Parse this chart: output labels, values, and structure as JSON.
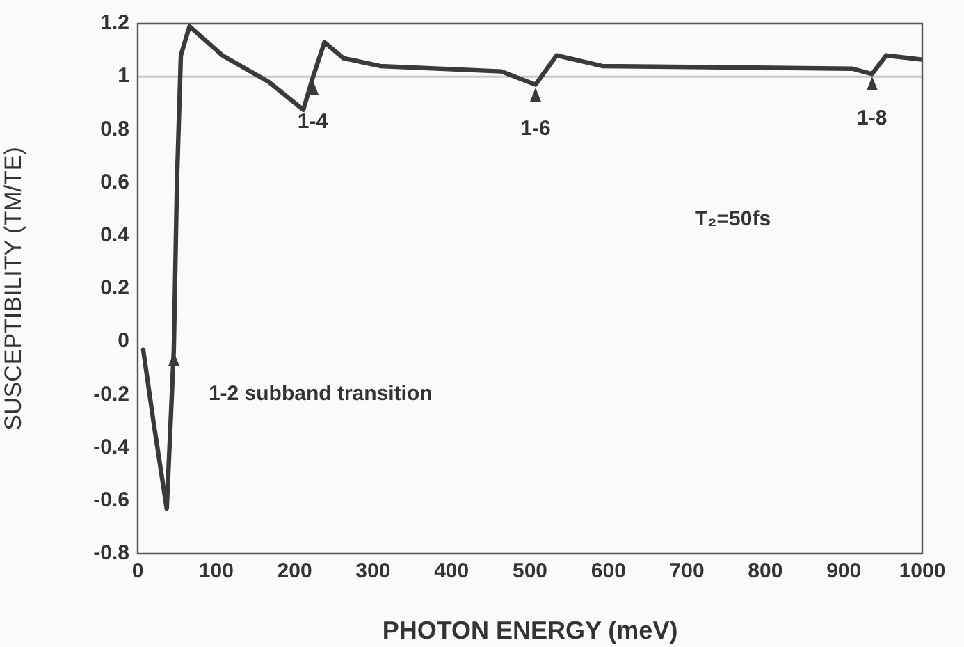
{
  "chart_data": {
    "type": "line",
    "xlabel": "PHOTON ENERGY (meV)",
    "ylabel": "SUSCEPTIBILITY (TM/TE)",
    "xlim": [
      0,
      1000
    ],
    "xticks": [
      0,
      100,
      200,
      300,
      400,
      500,
      600,
      700,
      800,
      900,
      1000
    ],
    "ylim": [
      -0.8,
      1.2
    ],
    "yticks": [
      -0.8,
      -0.6,
      -0.4,
      -0.2,
      0,
      0.2,
      0.4,
      0.6,
      0.8,
      1,
      1.2
    ],
    "grid": false,
    "legend": false,
    "marker": "none",
    "line_style": "solid",
    "series": [
      {
        "color": "#3a3a3a",
        "x": [
          7,
          20,
          37,
          42,
          46,
          50,
          55,
          66,
          108,
          167,
          211,
          223,
          238,
          262,
          309,
          463,
          507,
          534,
          592,
          911,
          936,
          954,
          998
        ],
        "values": [
          -0.03,
          -0.3,
          -0.63,
          -0.3,
          -0.03,
          0.6,
          1.08,
          1.19,
          1.08,
          0.98,
          0.875,
          0.995,
          1.13,
          1.07,
          1.04,
          1.02,
          0.97,
          1.08,
          1.04,
          1.03,
          1.01,
          1.08,
          1.065
        ]
      }
    ],
    "ref_lines": [
      {
        "axis": "y",
        "value": 1,
        "color": "#c8c8c8"
      }
    ],
    "annotations": [
      {
        "text": "1-2 subband transition",
        "x": 46,
        "y": -0.03
      },
      {
        "text": "1-4",
        "x": 223,
        "y": 0.995
      },
      {
        "text": "1-6",
        "x": 507,
        "y": 0.97
      },
      {
        "text": "1-8",
        "x": 936,
        "y": 1.01
      },
      "T₂=50fs"
    ]
  }
}
